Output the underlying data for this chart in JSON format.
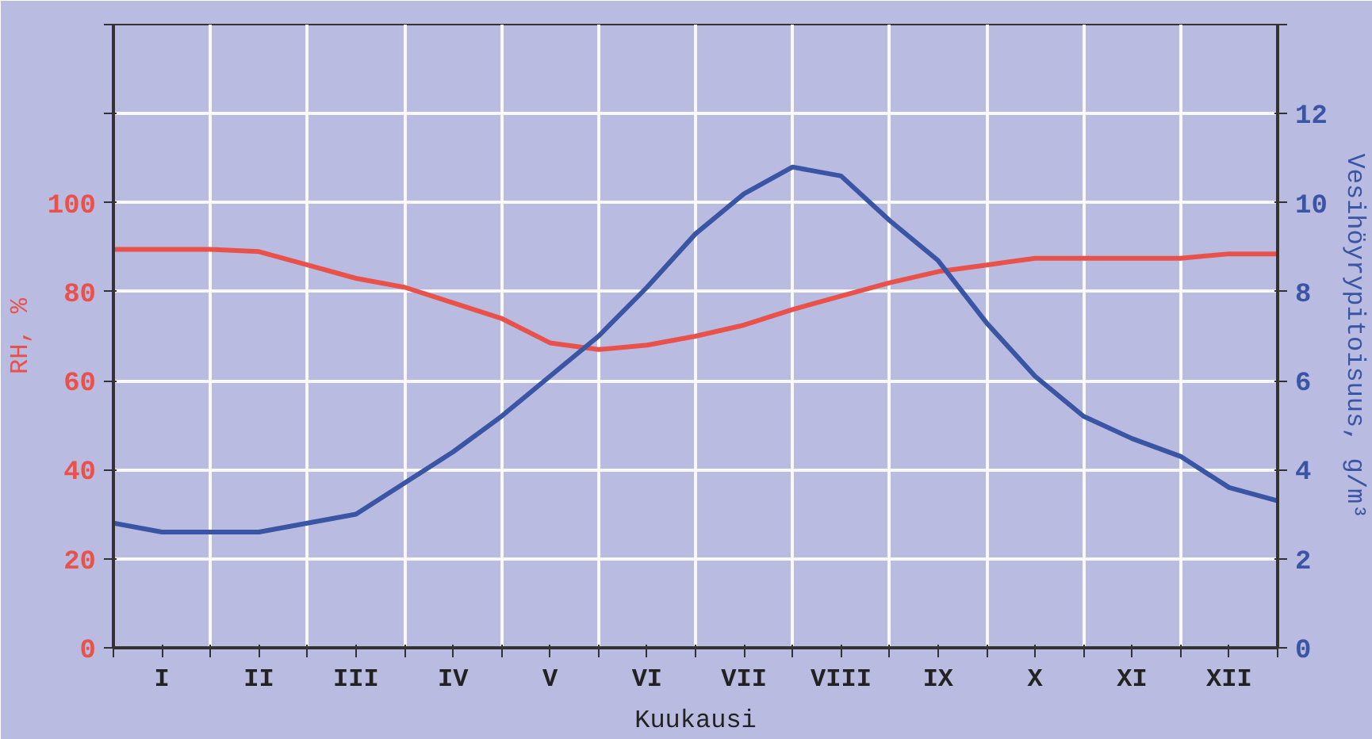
{
  "chart_data": {
    "type": "line",
    "xlabel": "Kuukausi",
    "ylabel": "RH, %",
    "y2label": "Vesihöyrypitoisuus, g/m³",
    "categories": [
      null,
      "I",
      null,
      "II",
      null,
      "III",
      null,
      "IV",
      null,
      "V",
      null,
      "VI",
      null,
      "VII",
      null,
      "VIII",
      null,
      "IX",
      null,
      "X",
      null,
      "XI",
      null,
      "XII",
      null
    ],
    "ylim": [
      0,
      140
    ],
    "yticks": [
      0,
      20,
      40,
      60,
      80,
      100,
      {
        "value": 120,
        "label": null
      },
      {
        "value": 140,
        "label": null
      }
    ],
    "y2lim": [
      0,
      14
    ],
    "y2ticks": [
      0,
      2,
      4,
      6,
      8,
      10,
      12,
      {
        "value": 14,
        "label": null
      }
    ],
    "grid": true,
    "series": [
      {
        "color": "#e8524a",
        "values": [
          89.5,
          89.5,
          89.5,
          89,
          86,
          83,
          81,
          77.5,
          74,
          68.5,
          67,
          68,
          70,
          72.5,
          76,
          79,
          82,
          84.5,
          86,
          87.5,
          87.5,
          87.5,
          87.5,
          88.5,
          88.5
        ]
      },
      {
        "color": "#3a55a4",
        "axis": "y2",
        "values": [
          2.8,
          2.6,
          2.6,
          2.6,
          2.8,
          3.0,
          3.7,
          4.4,
          5.2,
          6.1,
          7.0,
          8.1,
          9.3,
          10.2,
          10.8,
          10.6,
          9.6,
          8.7,
          7.3,
          6.1,
          5.2,
          4.7,
          4.3,
          3.6,
          3.3
        ]
      }
    ]
  }
}
